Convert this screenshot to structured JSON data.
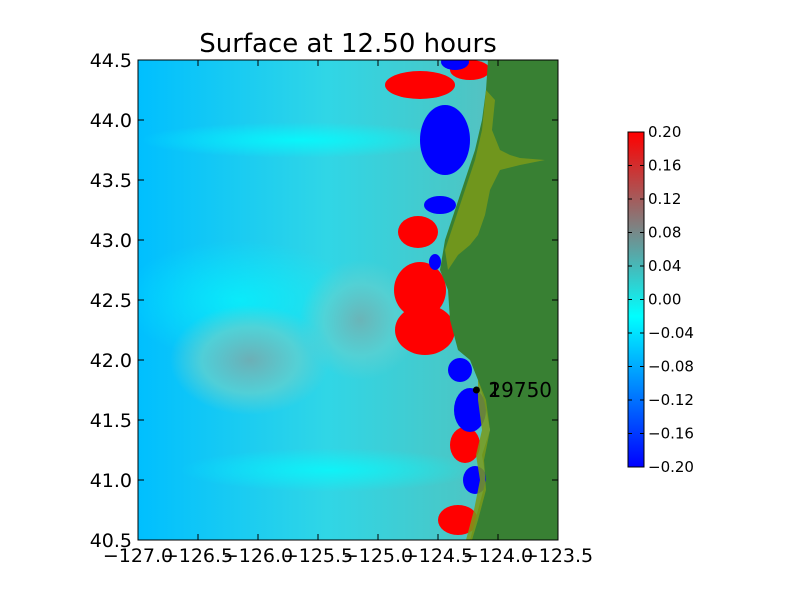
{
  "chart_data": {
    "type": "heatmap",
    "title": "Surface at 12.50 hours",
    "xlabel": "",
    "ylabel": "",
    "xlim": [
      -127.0,
      -123.5
    ],
    "ylim": [
      40.5,
      44.5
    ],
    "xticks": [
      "−127.0",
      "−126.5",
      "−126.0",
      "−125.5",
      "−125.0",
      "−124.5",
      "−124.0",
      "−123.5"
    ],
    "yticks": [
      "40.5",
      "41.0",
      "41.5",
      "42.0",
      "42.5",
      "43.0",
      "43.5",
      "44.0",
      "44.5"
    ],
    "colorbar": {
      "range": [
        -0.2,
        0.2
      ],
      "ticks": [
        "0.20",
        "0.16",
        "0.12",
        "0.08",
        "0.04",
        "0.00",
        "−0.04",
        "−0.08",
        "−0.12",
        "−0.16",
        "−0.20"
      ],
      "colors": [
        "#0000ff",
        "#00ffff",
        "#808080",
        "#ff0000"
      ]
    },
    "land_color": "#388033",
    "gauges": [
      {
        "label": "1",
        "x": -124.18,
        "y": 41.75
      },
      {
        "label": "2",
        "x": -124.18,
        "y": 41.75
      },
      {
        "label": "19750",
        "x": -124.18,
        "y": 41.75
      }
    ]
  }
}
